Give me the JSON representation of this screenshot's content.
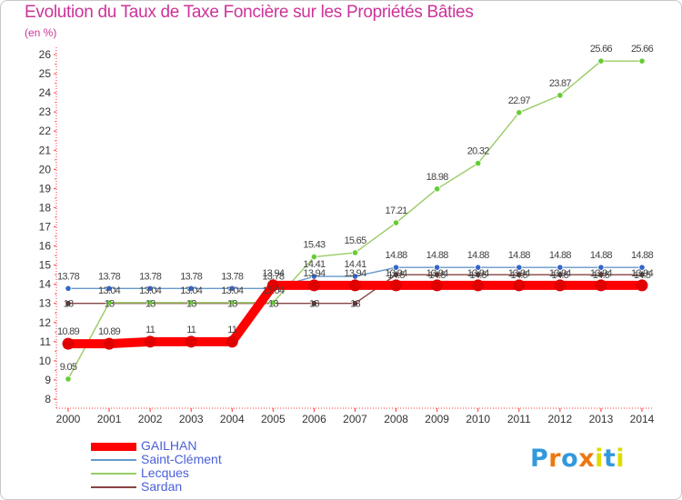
{
  "chart_data": {
    "type": "line",
    "title": "Evolution du Taux de Taxe Foncière sur les Propriétés Bâties",
    "ylabel": "(en %)",
    "xlabel": "",
    "x": [
      "2000",
      "2001",
      "2002",
      "2003",
      "2004",
      "2005",
      "2006",
      "2007",
      "2008",
      "2009",
      "2010",
      "2011",
      "2012",
      "2013",
      "2014"
    ],
    "ylim": [
      8,
      26
    ],
    "yticks": [
      "8",
      "9",
      "10",
      "11",
      "12",
      "13",
      "14",
      "15",
      "16",
      "17",
      "18",
      "19",
      "20",
      "21",
      "22",
      "23",
      "24",
      "25",
      "26"
    ],
    "grid": false,
    "legend_position": "bottom-left",
    "series": [
      {
        "name": "GAILHAN",
        "color": "#ff0000",
        "marker_color": "#e00000",
        "values": [
          10.89,
          10.89,
          11,
          11,
          11,
          13.94,
          13.94,
          13.94,
          13.94,
          13.94,
          13.94,
          13.94,
          13.94,
          13.94,
          13.94
        ],
        "labels": [
          "10.89",
          "10.89",
          "11",
          "11",
          "11",
          "13.94",
          "13.94",
          "13.94",
          "13.94",
          "13.94",
          "13.94",
          "13.94",
          "13.94",
          "13.94",
          "13.94"
        ]
      },
      {
        "name": "Saint-Clément",
        "color": "#6699cc",
        "marker_color": "#3366cc",
        "values": [
          13.78,
          13.78,
          13.78,
          13.78,
          13.78,
          13.78,
          14.41,
          14.41,
          14.88,
          14.88,
          14.88,
          14.88,
          14.88,
          14.88,
          14.88
        ],
        "labels": [
          "13.78",
          "13.78",
          "13.78",
          "13.78",
          "13.78",
          "13.78",
          "14.41",
          "14.41",
          "14.88",
          "14.88",
          "14.88",
          "14.88",
          "14.88",
          "14.88",
          "14.88"
        ]
      },
      {
        "name": "Lecques",
        "color": "#99cc66",
        "marker_color": "#66cc33",
        "values": [
          9.05,
          13.04,
          13.04,
          13.04,
          13.04,
          13.04,
          15.43,
          15.65,
          17.21,
          18.98,
          20.32,
          22.97,
          23.87,
          25.66,
          25.66
        ],
        "labels": [
          "9.05",
          "13.04",
          "13.04",
          "13.04",
          "13.04",
          "13.04",
          "15.43",
          "15.65",
          "17.21",
          "18.98",
          "20.32",
          "22.97",
          "23.87",
          "25.66",
          "25.66"
        ]
      },
      {
        "name": "Sardan",
        "color": "#884444",
        "marker_color": "#663333",
        "values": [
          13,
          13,
          13,
          13,
          13,
          13,
          13,
          13,
          14.5,
          14.5,
          14.5,
          14.5,
          14.5,
          14.5,
          14.5
        ],
        "labels": [
          "13",
          "13",
          "13",
          "13",
          "13",
          "13",
          "13",
          "13",
          "14.5",
          "14.5",
          "14.5",
          "14.5",
          "14.5",
          "14.5",
          "14.5"
        ]
      }
    ]
  },
  "brand": {
    "text": "Proxiti"
  }
}
